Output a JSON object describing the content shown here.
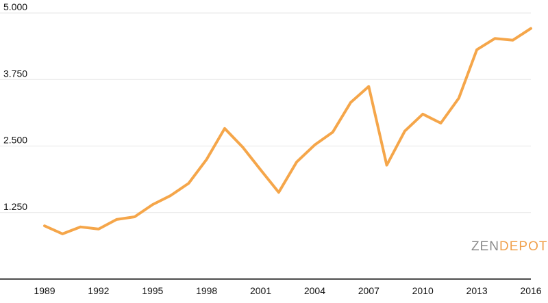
{
  "chart_data": {
    "type": "line",
    "title": "",
    "xlabel": "",
    "ylabel": "",
    "x": [
      1989,
      1990,
      1991,
      1992,
      1993,
      1994,
      1995,
      1996,
      1997,
      1998,
      1999,
      2000,
      2001,
      2002,
      2003,
      2004,
      2005,
      2006,
      2007,
      2008,
      2009,
      2010,
      2011,
      2012,
      2013,
      2014,
      2015,
      2016
    ],
    "series": [
      {
        "values": [
          1000,
          850,
          980,
          940,
          1120,
          1170,
          1400,
          1570,
          1800,
          2250,
          2830,
          2480,
          2050,
          1630,
          2200,
          2520,
          2760,
          3320,
          3620,
          2140,
          2780,
          3100,
          2930,
          3400,
          4310,
          4520,
          4490,
          4710
        ],
        "color": "#f5a64a"
      }
    ],
    "xticks": [
      "1989",
      "1992",
      "1995",
      "1998",
      "2001",
      "2004",
      "2007",
      "2010",
      "2013",
      "2016"
    ],
    "yticks": [
      "1.250",
      "2.500",
      "3.750",
      "5.000"
    ],
    "ytick_values": [
      1250,
      2500,
      3750,
      5000
    ],
    "xlim": [
      1989,
      2016
    ],
    "ylim": [
      0,
      5000
    ],
    "grid": "horizontal"
  },
  "watermark": {
    "part1": "ZEN",
    "part2": "DEPOT",
    "color1": "#8a8a8a",
    "color2": "#f0a04b"
  }
}
